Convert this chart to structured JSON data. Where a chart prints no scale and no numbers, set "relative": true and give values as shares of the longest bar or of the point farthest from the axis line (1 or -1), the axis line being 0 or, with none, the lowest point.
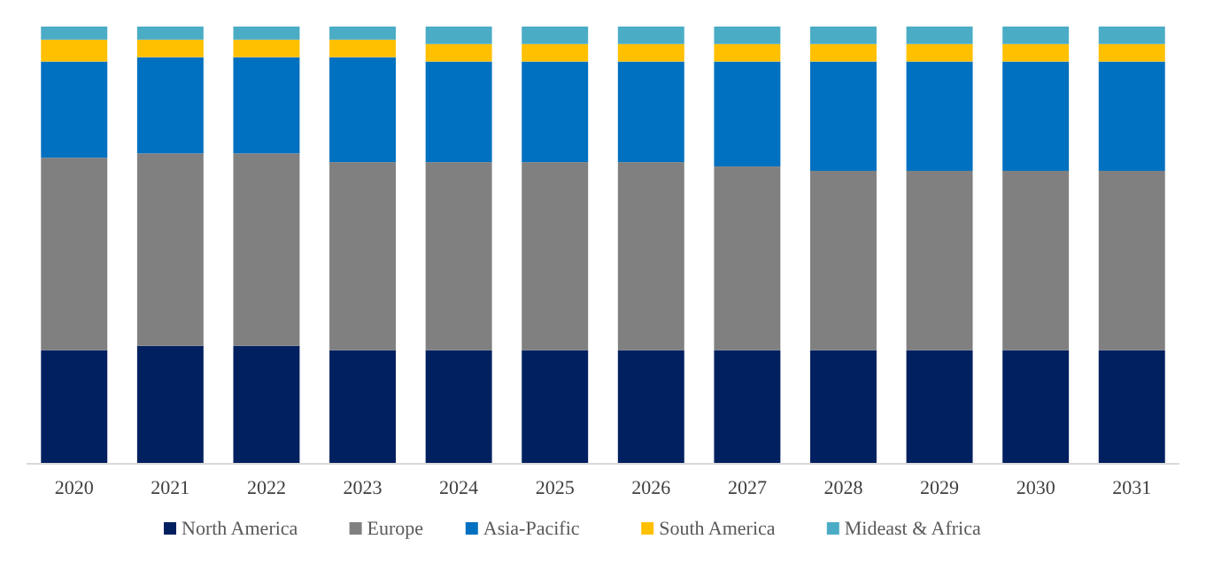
{
  "chart_data": {
    "type": "bar",
    "stacked": true,
    "relative": true,
    "legend": "bottom",
    "grid": false,
    "categories": [
      "2020",
      "2021",
      "2022",
      "2023",
      "2024",
      "2025",
      "2026",
      "2027",
      "2028",
      "2029",
      "2030",
      "2031"
    ],
    "series": [
      {
        "name": "North America",
        "color": "#002060",
        "values": [
          0.26,
          0.27,
          0.27,
          0.26,
          0.26,
          0.26,
          0.26,
          0.26,
          0.26,
          0.26,
          0.26,
          0.26
        ]
      },
      {
        "name": "Europe",
        "color": "#808080",
        "values": [
          0.44,
          0.44,
          0.44,
          0.43,
          0.43,
          0.43,
          0.43,
          0.42,
          0.41,
          0.41,
          0.41,
          0.41
        ]
      },
      {
        "name": "Asia-Pacific",
        "color": "#0070c0",
        "values": [
          0.22,
          0.22,
          0.22,
          0.24,
          0.23,
          0.23,
          0.23,
          0.24,
          0.25,
          0.25,
          0.25,
          0.25
        ]
      },
      {
        "name": "South America",
        "color": "#ffc000",
        "values": [
          0.05,
          0.04,
          0.04,
          0.04,
          0.04,
          0.04,
          0.04,
          0.04,
          0.04,
          0.04,
          0.04,
          0.04
        ]
      },
      {
        "name": "Mideast & Africa",
        "color": "#4bacc6",
        "values": [
          0.03,
          0.03,
          0.03,
          0.03,
          0.04,
          0.04,
          0.04,
          0.04,
          0.04,
          0.04,
          0.04,
          0.04
        ]
      }
    ]
  }
}
